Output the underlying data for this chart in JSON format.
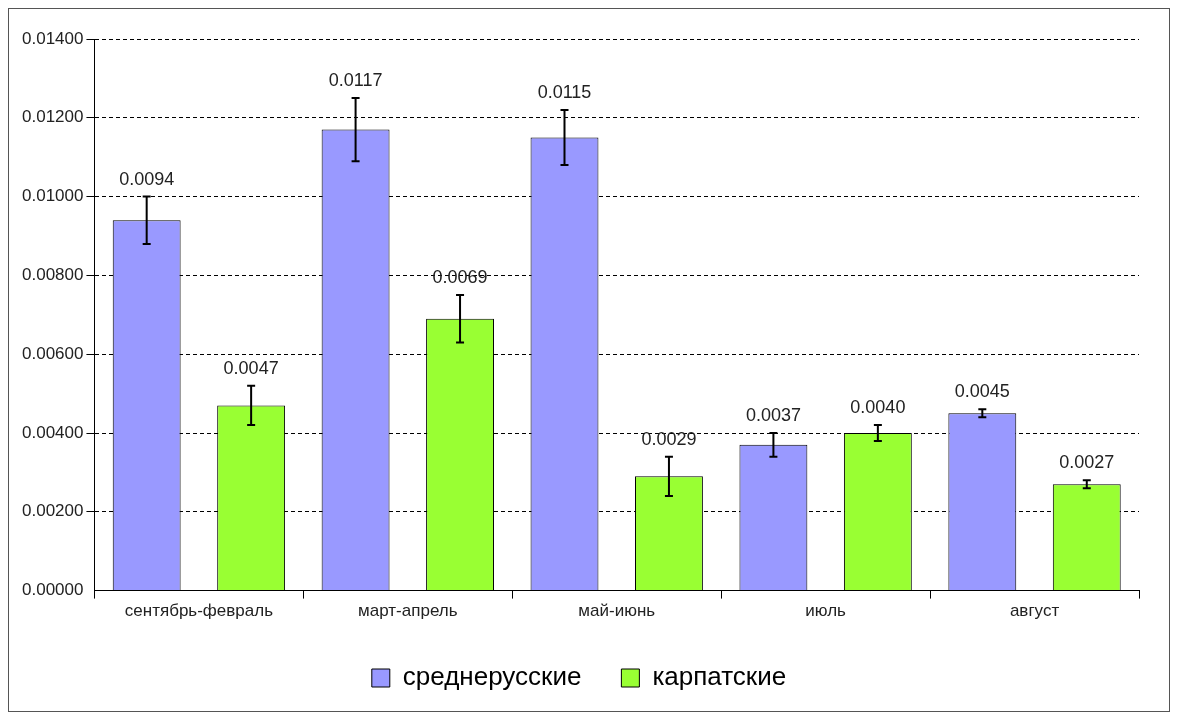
{
  "chart_data": {
    "type": "bar",
    "categories": [
      "сентябрь-февраль",
      "март-апрель",
      "май-июнь",
      "июль",
      "август"
    ],
    "series": [
      {
        "name": "среднерусские",
        "color": "#9999ff",
        "values": [
          0.0094,
          0.0117,
          0.0115,
          0.0037,
          0.0045
        ],
        "errors": [
          0.0006,
          0.0008,
          0.0007,
          0.0003,
          0.0001
        ],
        "value_labels": [
          "0.0094",
          "0.0117",
          "0.0115",
          "0.0037",
          "0.0045"
        ]
      },
      {
        "name": "карпатские",
        "color": "#99ff33",
        "values": [
          0.0047,
          0.0069,
          0.0029,
          0.004,
          0.0027
        ],
        "errors": [
          0.0005,
          0.0006,
          0.0005,
          0.0002,
          0.0001
        ],
        "value_labels": [
          "0.0047",
          "0.0069",
          "0.0029",
          "0.0040",
          "0.0027"
        ]
      }
    ],
    "ylim": [
      0,
      0.014
    ],
    "yticks": [
      {
        "value": 0,
        "label": "0.00000"
      },
      {
        "value": 0.002,
        "label": "0.00200"
      },
      {
        "value": 0.004,
        "label": "0.00400"
      },
      {
        "value": 0.006,
        "label": "0.00600"
      },
      {
        "value": 0.008,
        "label": "0.00800"
      },
      {
        "value": 0.01,
        "label": "0.01000"
      },
      {
        "value": 0.012,
        "label": "0.01200"
      },
      {
        "value": 0.014,
        "label": "0.01400"
      }
    ],
    "grid": "y",
    "legend": "bottom"
  }
}
